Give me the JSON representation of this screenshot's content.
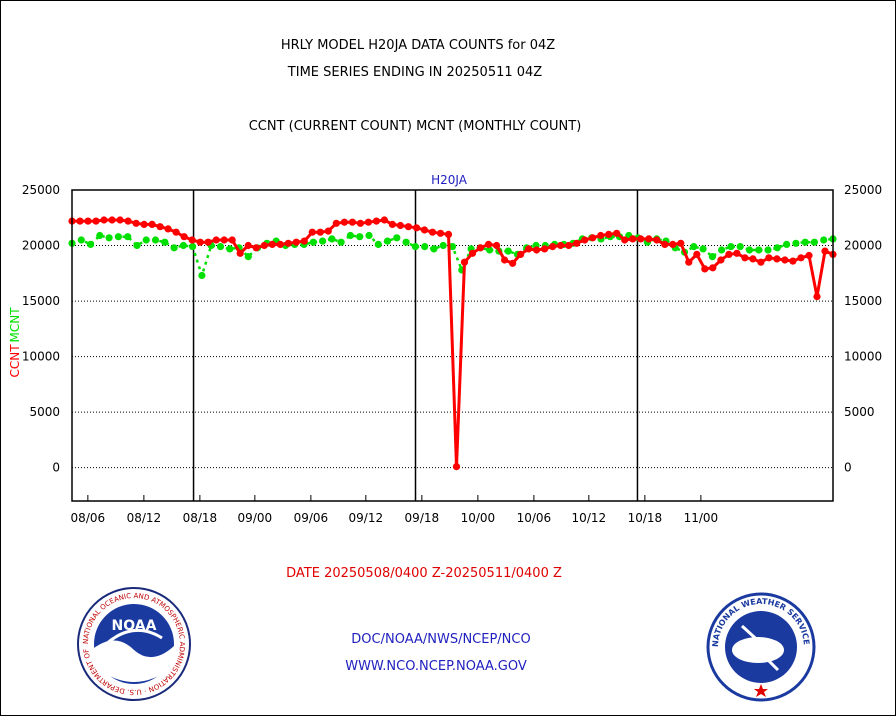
{
  "header": {
    "title_line1": "HRLY MODEL H20JA DATA COUNTS for 04Z",
    "title_line2": "TIME SERIES ENDING IN 20250511 04Z",
    "title_line3": "CCNT (CURRENT COUNT) MCNT (MONTHLY COUNT)"
  },
  "footer": {
    "date_range": "DATE 20250508/0400 Z-20250511/0400 Z",
    "org_line": "DOC/NOAA/NWS/NCEP/NCO",
    "url_line": "WWW.NCO.NCEP.NOAA.GOV"
  },
  "logos": {
    "noaa_text": "NOAA",
    "noaa_ring_text": "NATIONAL OCEANIC AND ATMOSPHERIC ADMINISTRATION · U.S. DEPARTMENT OF COMMERCE",
    "nws_ring_text": "NATIONAL WEATHER SERVICE"
  },
  "colors": {
    "ccnt": "#ff0000",
    "mcnt": "#00e000",
    "text_blue": "#2020c0",
    "footer_red": "#e00000"
  },
  "chart_data": {
    "type": "line",
    "title": "H20JA",
    "ylabel_ccnt": "CCNT",
    "ylabel_mcnt": "MCNT",
    "ylim": [
      -3000,
      25000
    ],
    "yticks": [
      0,
      5000,
      10000,
      15000,
      20000,
      25000
    ],
    "xlim": [
      0,
      72
    ],
    "vertical_dividers": [
      11.5,
      32.5,
      53.5,
      74.5
    ],
    "xtick_labels": [
      {
        "x": 1.5,
        "label": "08/06"
      },
      {
        "x": 6.8,
        "label": "08/12"
      },
      {
        "x": 12.1,
        "label": "08/18"
      },
      {
        "x": 17.3,
        "label": "09/00"
      },
      {
        "x": 22.6,
        "label": "09/06"
      },
      {
        "x": 27.8,
        "label": "09/12"
      },
      {
        "x": 33.1,
        "label": "09/18"
      },
      {
        "x": 38.4,
        "label": "10/00"
      },
      {
        "x": 43.7,
        "label": "10/06"
      },
      {
        "x": 48.9,
        "label": "10/12"
      },
      {
        "x": 54.2,
        "label": "10/18"
      },
      {
        "x": 59.5,
        "label": "11/00"
      }
    ],
    "series": [
      {
        "name": "CCNT",
        "values": [
          22200,
          22200,
          22200,
          22200,
          22300,
          22300,
          22300,
          22200,
          22000,
          21900,
          21900,
          21700,
          21500,
          21200,
          20800,
          20500,
          20300,
          20300,
          20500,
          20500,
          20500,
          19300,
          20000,
          19800,
          20000,
          20100,
          20100,
          20200,
          20300,
          20400,
          21200,
          21200,
          21300,
          22000,
          22100,
          22100,
          22000,
          22100,
          22200,
          22300,
          21900,
          21800,
          21700,
          21600,
          21400,
          21200,
          21100,
          21000,
          100,
          18500,
          19300,
          19800,
          20100,
          20000,
          18700,
          18400,
          19200,
          19700,
          19600,
          19700,
          19900,
          20000,
          20000,
          20200,
          20500,
          20700,
          20900,
          21000,
          21100,
          20500,
          20600,
          20600,
          20600,
          20500,
          20100,
          20100,
          20200,
          18500,
          19200,
          17900,
          18000,
          18700,
          19200,
          19300,
          18900,
          18800,
          18500,
          18900,
          18800,
          18700,
          18600,
          18900,
          19100,
          15400,
          19500,
          19200
        ]
      },
      {
        "name": "MCNT",
        "values": [
          20200,
          20500,
          20100,
          20900,
          20700,
          20800,
          20800,
          20000,
          20500,
          20500,
          20300,
          19800,
          20000,
          19900,
          17300,
          20000,
          19900,
          19700,
          19800,
          19000,
          19800,
          20200,
          20400,
          20000,
          20100,
          20100,
          20300,
          20400,
          20600,
          20300,
          20900,
          20800,
          20900,
          20100,
          20400,
          20700,
          20300,
          19900,
          19900,
          19700,
          20000,
          19900,
          17800,
          19700,
          19800,
          19600,
          19500,
          19500,
          19200,
          19800,
          20000,
          20000,
          20100,
          20100,
          20200,
          20600,
          20700,
          20600,
          20800,
          20800,
          20900,
          20700,
          20300,
          20600,
          20400,
          19800,
          19400,
          19900,
          19700,
          19000,
          19600,
          19900,
          19900,
          19600,
          19600,
          19600,
          19800,
          20100,
          20200,
          20300,
          20300,
          20500,
          20600
        ]
      }
    ]
  }
}
